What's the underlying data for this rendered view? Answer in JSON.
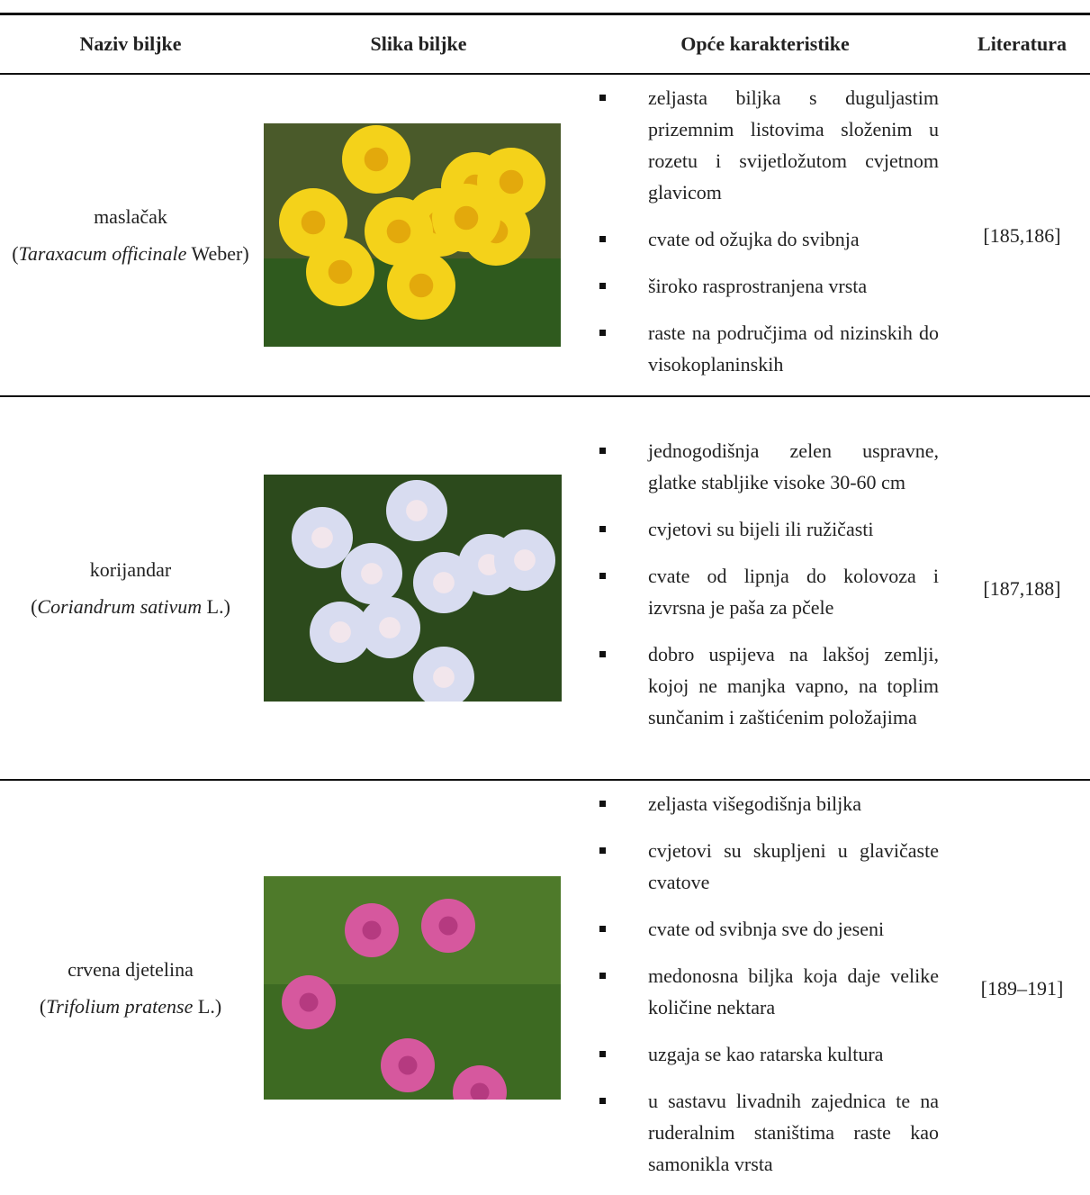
{
  "table": {
    "header": [
      "Naziv biljke",
      "Slika biljke",
      "Opće karakteristike",
      "Literatura"
    ],
    "rows": [
      {
        "name": "maslačak",
        "open": "(",
        "latin": "Taraxacum officinale",
        "author": "Weber)",
        "bullets": [
          "zeljasta biljka s duguljastim prizemnim listovima složenim u rozetu i svijetložutom cvjetnom glavicom",
          "cvate od ožujka do svibnja",
          "široko rasprostranjena vrsta",
          "raste na područjima od nizinskih do visokoplaninskih"
        ],
        "literature": "[185,186]"
      },
      {
        "name": "korijandar",
        "open": "(",
        "latin": "Coriandrum sativum",
        "author": "L.)",
        "bullets": [
          "jednogodišnja zelen uspravne, glatke stabljike visoke 30-60 cm",
          "cvjetovi su bijeli ili ružičasti",
          "cvate od lipnja do kolovoza i izvrsna je paša za pčele",
          "dobro uspijeva na lakšoj zemlji, kojoj ne manjka vapno, na toplim sunčanim i zaštićenim položajima"
        ],
        "literature": "[187,188]"
      },
      {
        "name": "crvena djetelina",
        "open": "(",
        "latin": "Trifolium pratense",
        "author": "L.)",
        "bullets": [
          "zeljasta višegodišnja biljka",
          "cvjetovi su skupljeni u glavičaste cvatove",
          "cvate od svibnja sve do jeseni",
          "medonosna biljka koja daje velike količine nektara",
          "uzgaja se kao ratarska kultura",
          "u sastavu livadnih zajednica te na ruderalnim staništima raste kao samonikla vrsta"
        ],
        "literature": "[189–191]"
      }
    ]
  }
}
